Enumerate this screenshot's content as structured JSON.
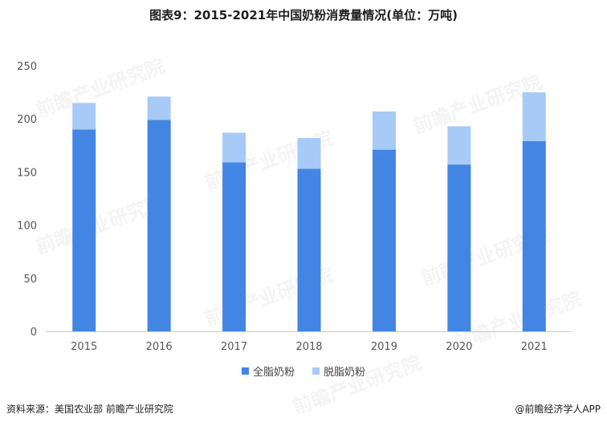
{
  "title": "图表9：2015-2021年中国奶粉消费量情况(单位：万吨)",
  "legend": [
    {
      "name": "全脂奶粉",
      "color": "#4285e3"
    },
    {
      "name": "脱脂奶粉",
      "color": "#a7cbf6"
    }
  ],
  "footer": {
    "source": "资料来源：美国农业部 前瞻产业研究院",
    "brand": "@前瞻经济学人APP"
  },
  "watermark": "前瞻产业研究院",
  "chart_data": {
    "type": "bar",
    "stacked": true,
    "title": "图表9：2015-2021年中国奶粉消费量情况(单位：万吨)",
    "categories": [
      "2015",
      "2016",
      "2017",
      "2018",
      "2019",
      "2020",
      "2021"
    ],
    "series": [
      {
        "name": "全脂奶粉",
        "values": [
          190,
          199,
          159,
          153,
          171,
          157,
          179
        ]
      },
      {
        "name": "脱脂奶粉",
        "values": [
          25,
          22,
          28,
          29,
          36,
          36,
          46
        ]
      }
    ],
    "ylim": [
      0,
      250
    ],
    "yticks": [
      0,
      50,
      100,
      150,
      200,
      250
    ],
    "grid": false,
    "legend_position": "bottom"
  }
}
